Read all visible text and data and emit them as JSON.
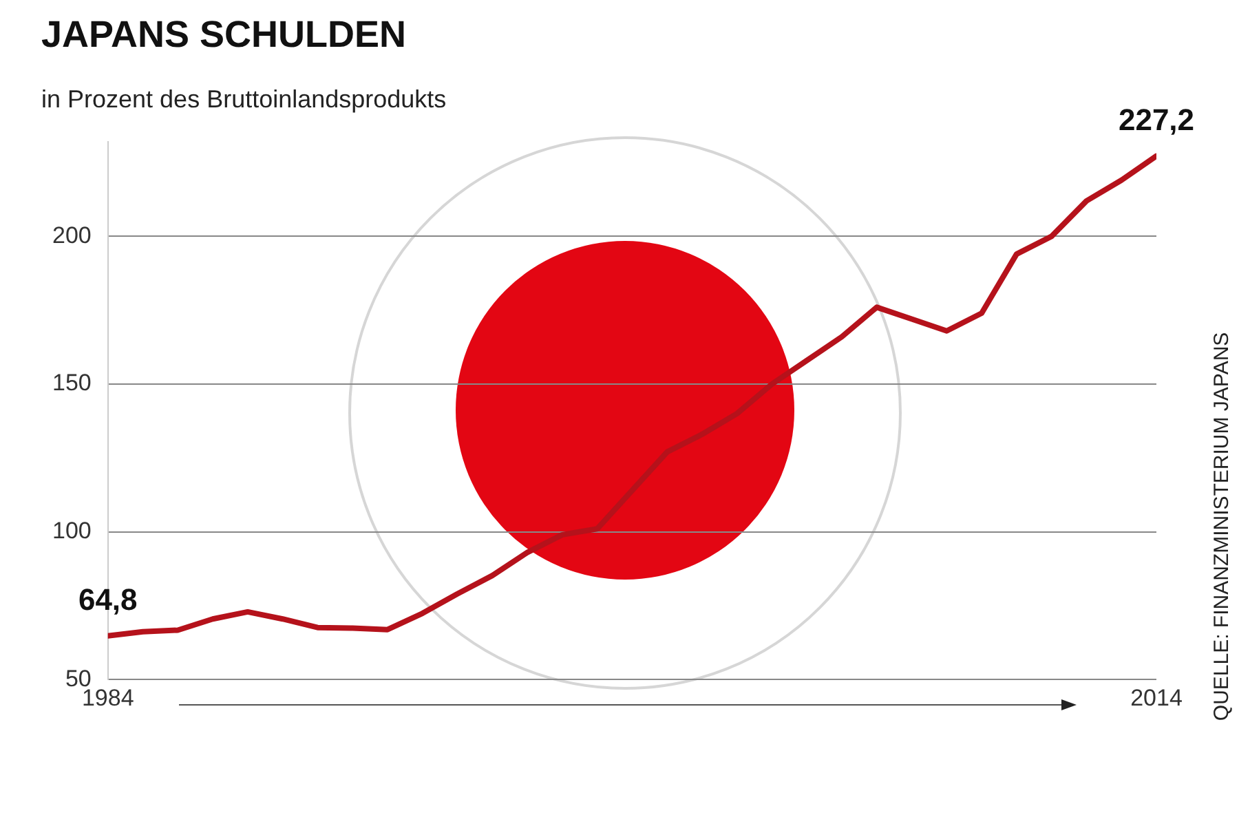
{
  "chart_data": {
    "type": "line",
    "title": "JAPANS SCHULDEN",
    "subtitle": "in Prozent des Bruttoinlandsprodukts",
    "x": [
      1984,
      1985,
      1986,
      1987,
      1988,
      1989,
      1990,
      1991,
      1992,
      1993,
      1994,
      1995,
      1996,
      1997,
      1998,
      1999,
      2000,
      2001,
      2002,
      2003,
      2004,
      2005,
      2006,
      2007,
      2008,
      2009,
      2010,
      2011,
      2012,
      2013,
      2014
    ],
    "series": [
      {
        "color": "#b5121b",
        "values": [
          64.8,
          66.2,
          66.7,
          70.5,
          72.9,
          70.5,
          67.6,
          67.4,
          66.9,
          72.4,
          79,
          85.2,
          93,
          99,
          101,
          114,
          127,
          133,
          140,
          150,
          158,
          166,
          176,
          172,
          168,
          174,
          194,
          200,
          212,
          219,
          227.2
        ]
      }
    ],
    "xlim": [
      1984,
      2014
    ],
    "xticks": [
      1984,
      2014
    ],
    "ylim": [
      50,
      232
    ],
    "yticks": [
      50,
      100,
      150,
      200
    ],
    "grid": "y",
    "legend": false,
    "marker": "none",
    "line_style": "solid",
    "annotations": [
      {
        "text": "64,8",
        "x": 1984,
        "y": 64.8
      },
      {
        "text": "227,2",
        "x": 2014,
        "y": 227.2
      },
      "QUELLE: FINANZMINISTERIUM JAPANS"
    ]
  }
}
